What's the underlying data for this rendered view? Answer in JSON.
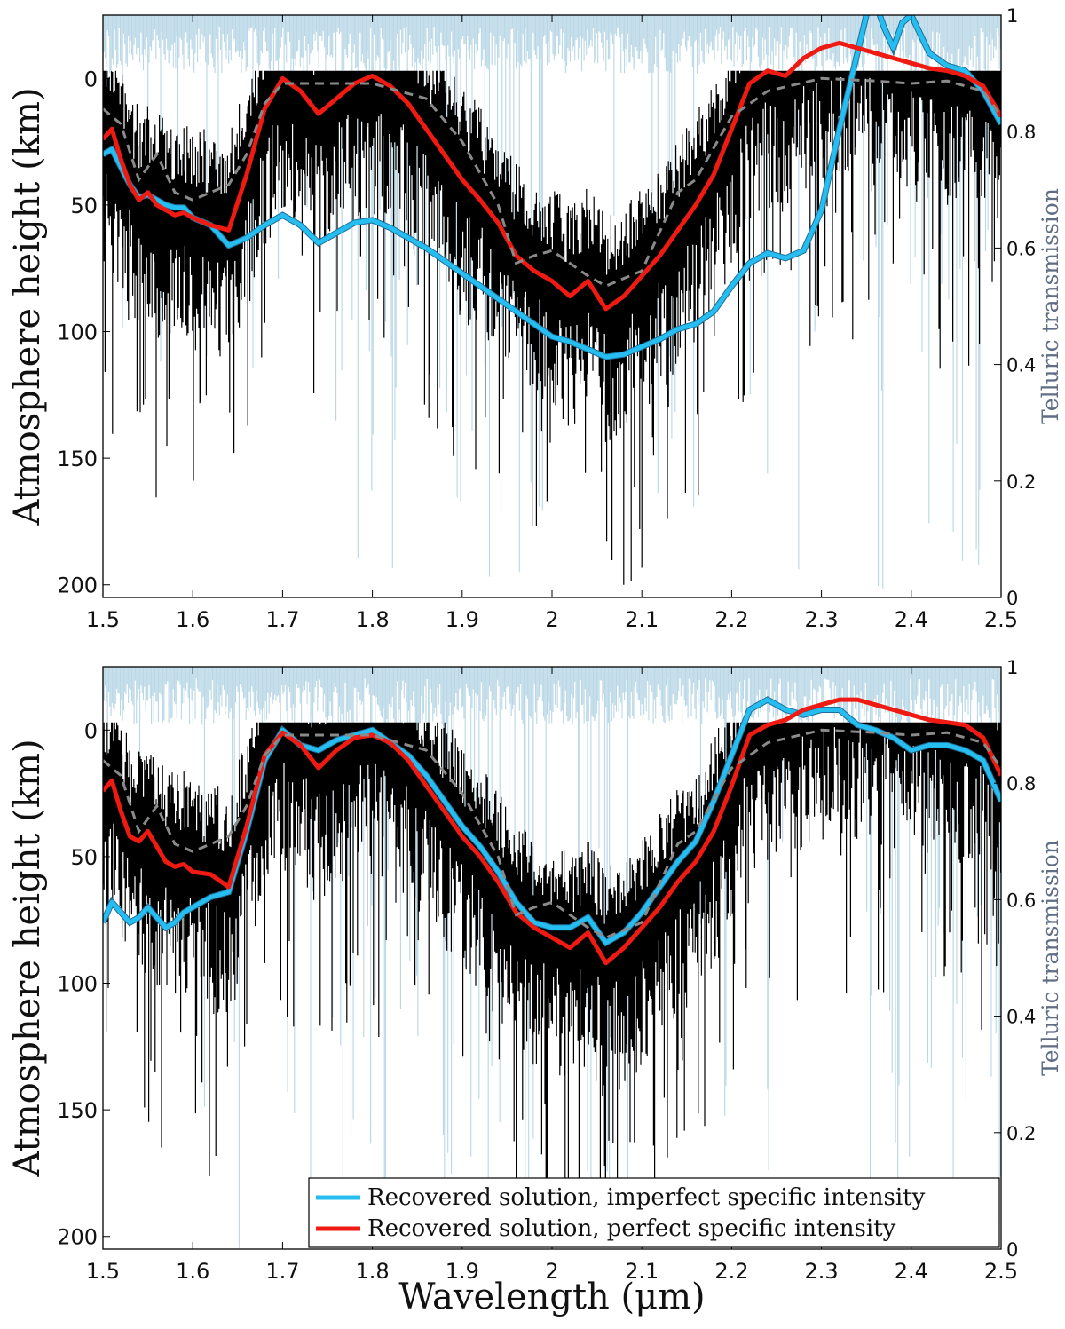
{
  "chart_data": [
    {
      "type": "line",
      "panel": "top",
      "xlabel": "",
      "ylabel": "Atmosphere height (km)",
      "y2label": "Telluric transmission",
      "xlim": [
        1.5,
        2.5
      ],
      "ylim": [
        205,
        -25
      ],
      "y2lim": [
        0,
        1
      ],
      "xticks": [
        "1.5",
        "1.6",
        "1.7",
        "1.8",
        "1.9",
        "2",
        "2.1",
        "2.2",
        "2.3",
        "2.4",
        "2.5"
      ],
      "yticks": [
        "0",
        "50",
        "100",
        "150",
        "200"
      ],
      "y2ticks": [
        "0",
        "0.2",
        "0.4",
        "0.6",
        "0.8",
        "1"
      ],
      "legend": null,
      "series": [
        {
          "color": "#26bdf0",
          "x": [
            1.5,
            1.51,
            1.52,
            1.53,
            1.54,
            1.55,
            1.56,
            1.57,
            1.58,
            1.59,
            1.6,
            1.62,
            1.64,
            1.66,
            1.68,
            1.7,
            1.72,
            1.74,
            1.76,
            1.78,
            1.8,
            1.82,
            1.84,
            1.86,
            1.88,
            1.9,
            1.92,
            1.94,
            1.96,
            1.98,
            2.0,
            2.02,
            2.04,
            2.06,
            2.08,
            2.1,
            2.12,
            2.14,
            2.16,
            2.18,
            2.2,
            2.22,
            2.24,
            2.26,
            2.28,
            2.3,
            2.32,
            2.34,
            2.35,
            2.36,
            2.37,
            2.38,
            2.39,
            2.4,
            2.42,
            2.44,
            2.46,
            2.48,
            2.5
          ],
          "y": [
            30,
            28,
            35,
            42,
            47,
            46,
            48,
            50,
            51,
            51,
            55,
            58,
            66,
            63,
            58,
            54,
            58,
            65,
            61,
            57,
            56,
            59,
            63,
            67,
            72,
            77,
            82,
            87,
            92,
            97,
            102,
            104,
            107,
            110,
            109,
            106,
            103,
            99,
            97,
            92,
            82,
            73,
            69,
            71,
            68,
            52,
            20,
            -10,
            -25,
            -30,
            -20,
            -12,
            -22,
            -25,
            -10,
            -5,
            -3,
            5,
            18
          ]
        },
        {
          "color": "#ef1a12",
          "x": [
            1.5,
            1.51,
            1.52,
            1.53,
            1.54,
            1.55,
            1.56,
            1.57,
            1.58,
            1.59,
            1.6,
            1.62,
            1.64,
            1.66,
            1.68,
            1.7,
            1.72,
            1.74,
            1.76,
            1.78,
            1.8,
            1.82,
            1.84,
            1.86,
            1.88,
            1.9,
            1.92,
            1.94,
            1.96,
            1.98,
            2.0,
            2.02,
            2.04,
            2.06,
            2.08,
            2.1,
            2.12,
            2.14,
            2.16,
            2.18,
            2.2,
            2.22,
            2.24,
            2.26,
            2.28,
            2.3,
            2.32,
            2.34,
            2.36,
            2.38,
            2.4,
            2.42,
            2.44,
            2.46,
            2.48,
            2.5
          ],
          "y": [
            24,
            20,
            32,
            42,
            48,
            45,
            50,
            52,
            54,
            53,
            55,
            58,
            60,
            38,
            12,
            0,
            5,
            14,
            8,
            2,
            -1,
            3,
            10,
            20,
            30,
            40,
            48,
            57,
            70,
            76,
            80,
            86,
            80,
            91,
            86,
            78,
            70,
            60,
            50,
            38,
            20,
            2,
            -3,
            -1,
            -8,
            -12,
            -14,
            -12,
            -10,
            -8,
            -6,
            -4,
            -3,
            -1,
            3,
            15
          ]
        },
        {
          "color": "#8a8a8a",
          "dashed": true,
          "x": [
            1.5,
            1.52,
            1.54,
            1.56,
            1.58,
            1.6,
            1.62,
            1.64,
            1.66,
            1.68,
            1.7,
            1.74,
            1.8,
            1.86,
            1.9,
            1.94,
            1.96,
            1.98,
            2.0,
            2.04,
            2.06,
            2.1,
            2.14,
            2.16,
            2.2,
            2.24,
            2.3,
            2.36,
            2.4,
            2.44,
            2.48,
            2.5
          ],
          "y": [
            12,
            18,
            40,
            30,
            45,
            48,
            45,
            42,
            30,
            10,
            2,
            2,
            2,
            8,
            25,
            50,
            73,
            70,
            68,
            78,
            82,
            76,
            45,
            40,
            15,
            5,
            0,
            1,
            2,
            1,
            5,
            15
          ]
        }
      ]
    },
    {
      "type": "line",
      "panel": "bottom",
      "xlabel": "Wavelength (μm)",
      "ylabel": "Atmosphere height (km)",
      "y2label": "Telluric transmission",
      "xlim": [
        1.5,
        2.5
      ],
      "ylim": [
        205,
        -25
      ],
      "y2lim": [
        0,
        1
      ],
      "xticks": [
        "1.5",
        "1.6",
        "1.7",
        "1.8",
        "1.9",
        "2",
        "2.1",
        "2.2",
        "2.3",
        "2.4",
        "2.5"
      ],
      "yticks": [
        "0",
        "50",
        "100",
        "150",
        "200"
      ],
      "y2ticks": [
        "0",
        "0.2",
        "0.4",
        "0.6",
        "0.8",
        "1"
      ],
      "legend": {
        "placement": "bottom-right",
        "entries": [
          {
            "label": "Recovered solution, imperfect specific intensity",
            "color": "#26bdf0"
          },
          {
            "label": "Recovered solution, perfect specific intensity",
            "color": "#ef1a12"
          }
        ]
      },
      "series": [
        {
          "color": "#26bdf0",
          "x": [
            1.5,
            1.51,
            1.52,
            1.53,
            1.54,
            1.55,
            1.56,
            1.57,
            1.58,
            1.59,
            1.6,
            1.62,
            1.64,
            1.66,
            1.68,
            1.7,
            1.72,
            1.74,
            1.76,
            1.78,
            1.8,
            1.82,
            1.84,
            1.86,
            1.88,
            1.9,
            1.92,
            1.94,
            1.96,
            1.98,
            2.0,
            2.02,
            2.04,
            2.06,
            2.08,
            2.1,
            2.12,
            2.14,
            2.16,
            2.18,
            2.2,
            2.22,
            2.24,
            2.26,
            2.28,
            2.3,
            2.32,
            2.34,
            2.36,
            2.38,
            2.4,
            2.42,
            2.44,
            2.46,
            2.48,
            2.5
          ],
          "y": [
            76,
            68,
            72,
            76,
            74,
            70,
            74,
            78,
            76,
            72,
            70,
            66,
            64,
            40,
            12,
            0,
            6,
            8,
            4,
            2,
            0,
            5,
            10,
            18,
            28,
            38,
            46,
            56,
            68,
            76,
            78,
            78,
            74,
            84,
            80,
            72,
            62,
            52,
            44,
            28,
            10,
            -8,
            -12,
            -8,
            -6,
            -8,
            -8,
            -2,
            0,
            3,
            8,
            6,
            6,
            8,
            12,
            28
          ]
        },
        {
          "color": "#ef1a12",
          "x": [
            1.5,
            1.51,
            1.52,
            1.53,
            1.54,
            1.55,
            1.56,
            1.57,
            1.58,
            1.59,
            1.6,
            1.62,
            1.64,
            1.66,
            1.68,
            1.7,
            1.72,
            1.74,
            1.76,
            1.78,
            1.8,
            1.82,
            1.84,
            1.86,
            1.88,
            1.9,
            1.92,
            1.94,
            1.96,
            1.98,
            2.0,
            2.02,
            2.04,
            2.06,
            2.08,
            2.1,
            2.12,
            2.14,
            2.16,
            2.18,
            2.2,
            2.22,
            2.24,
            2.26,
            2.28,
            2.3,
            2.32,
            2.34,
            2.36,
            2.38,
            2.4,
            2.42,
            2.44,
            2.46,
            2.48,
            2.5
          ],
          "y": [
            24,
            20,
            32,
            42,
            44,
            40,
            46,
            52,
            54,
            53,
            56,
            57,
            62,
            38,
            10,
            1,
            6,
            15,
            8,
            3,
            2,
            5,
            12,
            22,
            32,
            42,
            50,
            60,
            72,
            78,
            82,
            86,
            80,
            92,
            86,
            78,
            70,
            60,
            52,
            40,
            22,
            2,
            -2,
            -4,
            -8,
            -10,
            -12,
            -12,
            -10,
            -8,
            -6,
            -4,
            -3,
            -2,
            3,
            18
          ]
        },
        {
          "color": "#8a8a8a",
          "dashed": true,
          "x": [
            1.5,
            1.52,
            1.54,
            1.56,
            1.58,
            1.6,
            1.62,
            1.64,
            1.66,
            1.68,
            1.7,
            1.74,
            1.8,
            1.86,
            1.9,
            1.94,
            1.96,
            1.98,
            2.0,
            2.04,
            2.06,
            2.1,
            2.14,
            2.16,
            2.2,
            2.24,
            2.3,
            2.36,
            2.4,
            2.44,
            2.48,
            2.5
          ],
          "y": [
            12,
            18,
            40,
            30,
            45,
            48,
            45,
            42,
            30,
            10,
            2,
            2,
            2,
            8,
            25,
            50,
            73,
            70,
            68,
            78,
            82,
            76,
            45,
            40,
            15,
            5,
            0,
            1,
            2,
            1,
            5,
            15
          ]
        }
      ]
    }
  ]
}
